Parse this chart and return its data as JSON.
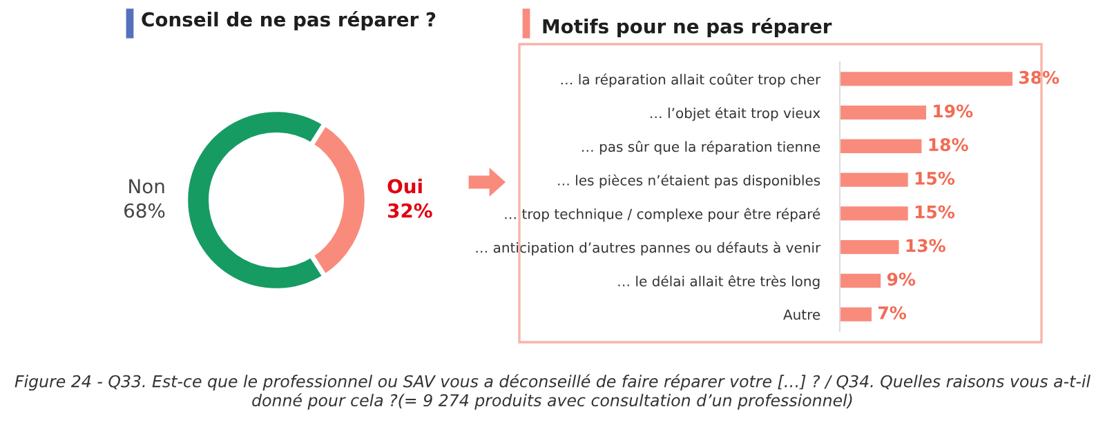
{
  "chart_data": [
    {
      "type": "donut",
      "title": "Conseil de ne pas réparer ?",
      "categories": [
        "Oui",
        "Non"
      ],
      "values": [
        32,
        68
      ],
      "colors": [
        "#f98b7d",
        "#169b62"
      ],
      "value_labels": [
        "32%",
        "68%"
      ]
    },
    {
      "type": "bar",
      "orientation": "horizontal",
      "title": "Motifs pour ne pas réparer",
      "categories": [
        "… la réparation allait coûter trop cher",
        "… l’objet était trop vieux",
        "… pas sûr que la réparation tienne",
        "… les pièces n’étaient pas disponibles",
        "… trop technique / complexe pour être réparé",
        "… anticipation d’autres pannes ou défauts à venir",
        "… le délai allait être très long",
        "Autre"
      ],
      "values": [
        38,
        19,
        18,
        15,
        15,
        13,
        9,
        7
      ],
      "color": "#f98b7d",
      "value_labels": [
        "38%",
        "19%",
        "18%",
        "15%",
        "15%",
        "13%",
        "9%",
        "7%"
      ],
      "annotations": [
        "Figure 24 - Q33. Est-ce que le professionnel ou SAV vous a déconseillé de faire réparer votre […] ? / Q34. Quelles raisons vous a-t-il donné pour cela ?(= 9 274 produits avec consultation d’un professionnel)"
      ]
    }
  ]
}
